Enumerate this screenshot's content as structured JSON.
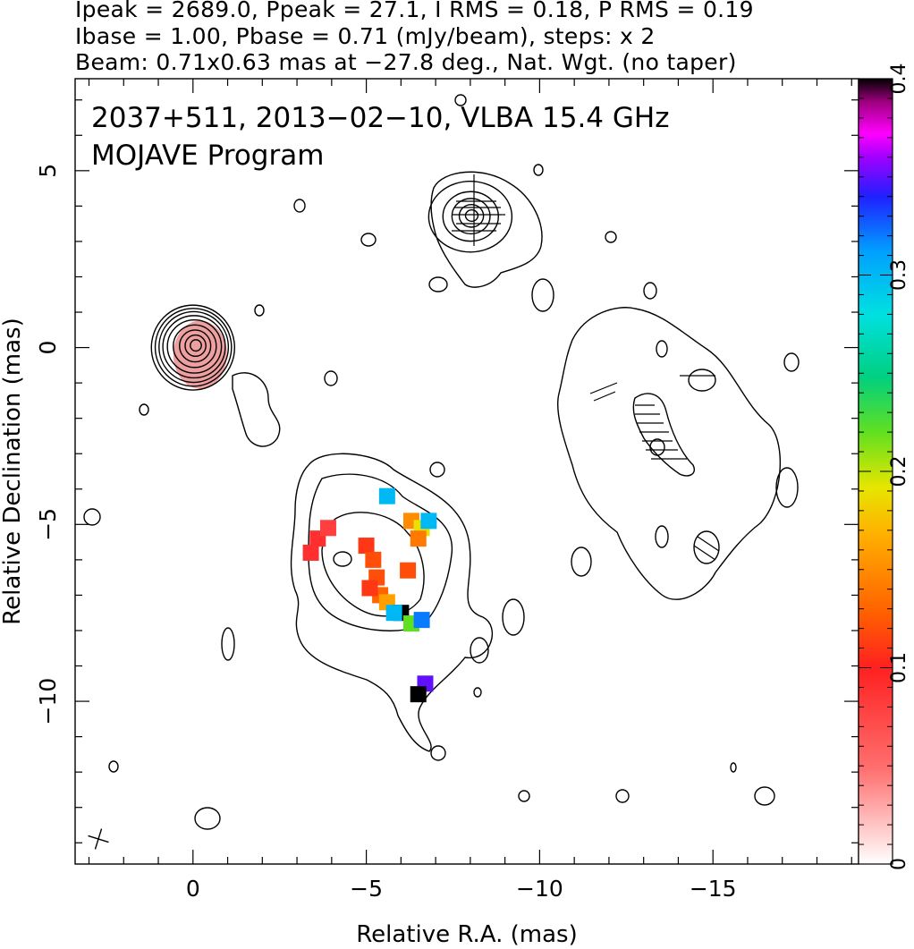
{
  "header": {
    "line1": "Ipeak = 2689.0, Ppeak = 27.1, I RMS = 0.18, P RMS = 0.19",
    "line2": "Ibase = 1.00, Pbase = 0.71 (mJy/beam), steps: x 2",
    "line3": "Beam: 0.71x0.63 mas at −27.8 deg., Nat. Wgt. (no taper)"
  },
  "chart_data": {
    "type": "heatmap",
    "title_lines": [
      "2037+511, 2013−02−10, VLBA 15.4 GHz",
      "MOJAVE Program"
    ],
    "xlabel": "Relative R.A. (mas)",
    "ylabel": "Relative Declination (mas)",
    "xlim": [
      3.4,
      -19.2
    ],
    "ylim": [
      -14.6,
      7.6
    ],
    "xticks": [
      {
        "v": 0,
        "label": "0"
      },
      {
        "v": -5,
        "label": "−5"
      },
      {
        "v": -10,
        "label": "−10"
      },
      {
        "v": -15,
        "label": "−15"
      }
    ],
    "yticks": [
      {
        "v": 5,
        "label": "5"
      },
      {
        "v": 0,
        "label": "0"
      },
      {
        "v": -5,
        "label": "−5"
      },
      {
        "v": -10,
        "label": "−10"
      }
    ],
    "colorbar": {
      "range": [
        0,
        0.4
      ],
      "ticks": [
        {
          "v": 0,
          "label": "0"
        },
        {
          "v": 0.1,
          "label": "0.1"
        },
        {
          "v": 0.2,
          "label": "0.2"
        },
        {
          "v": 0.3,
          "label": "0.3"
        },
        {
          "v": 0.4,
          "label": "0.4"
        }
      ]
    },
    "contours": [
      {
        "name": "core",
        "x": 0.0,
        "y": 0.0,
        "levels": [
          {
            "rx": 1.2,
            "ry": 1.2
          },
          {
            "rx": 1.1,
            "ry": 1.1
          },
          {
            "rx": 1.0,
            "ry": 1.0
          },
          {
            "rx": 0.9,
            "ry": 0.88
          },
          {
            "rx": 0.78,
            "ry": 0.75
          },
          {
            "rx": 0.62,
            "ry": 0.6
          },
          {
            "rx": 0.45,
            "ry": 0.45
          },
          {
            "rx": 0.3,
            "ry": 0.3
          },
          {
            "rx": 0.16,
            "ry": 0.16
          }
        ]
      },
      {
        "name": "north-component",
        "x": -8.0,
        "y": 3.7,
        "levels": [
          {
            "rx": 1.2,
            "ry": 1.0
          },
          {
            "rx": 0.8,
            "ry": 0.7
          },
          {
            "rx": 0.55,
            "ry": 0.5
          },
          {
            "rx": 0.35,
            "ry": 0.32
          },
          {
            "rx": 0.18,
            "ry": 0.16
          }
        ]
      }
    ],
    "polarization_pixels": [
      {
        "x": -3.6,
        "y": -5.4,
        "v": 0.09
      },
      {
        "x": -3.9,
        "y": -5.1,
        "v": 0.08
      },
      {
        "x": -3.4,
        "y": -5.8,
        "v": 0.09
      },
      {
        "x": -5.0,
        "y": -5.6,
        "v": 0.11
      },
      {
        "x": -5.2,
        "y": -6.0,
        "v": 0.12
      },
      {
        "x": -5.3,
        "y": -6.5,
        "v": 0.12
      },
      {
        "x": -5.4,
        "y": -7.0,
        "v": 0.13
      },
      {
        "x": -5.1,
        "y": -6.8,
        "v": 0.11
      },
      {
        "x": -5.6,
        "y": -7.2,
        "v": 0.16
      },
      {
        "x": -5.6,
        "y": -4.2,
        "v": 0.3
      },
      {
        "x": -6.3,
        "y": -4.9,
        "v": 0.15
      },
      {
        "x": -6.6,
        "y": -5.1,
        "v": 0.19
      },
      {
        "x": -6.5,
        "y": -5.4,
        "v": 0.14
      },
      {
        "x": -6.8,
        "y": -4.9,
        "v": 0.3
      },
      {
        "x": -6.0,
        "y": -7.5,
        "v": 0.4
      },
      {
        "x": -5.8,
        "y": -7.5,
        "v": 0.3
      },
      {
        "x": -6.3,
        "y": -7.8,
        "v": 0.22
      },
      {
        "x": -6.6,
        "y": -7.7,
        "v": 0.32
      },
      {
        "x": -6.7,
        "y": -9.5,
        "v": 0.35
      },
      {
        "x": -6.5,
        "y": -9.8,
        "v": 0.4
      },
      {
        "x": -6.2,
        "y": -6.3,
        "v": 0.12
      }
    ],
    "beam": {
      "major": 0.71,
      "minor": 0.63,
      "pa_deg": -27.8
    }
  }
}
